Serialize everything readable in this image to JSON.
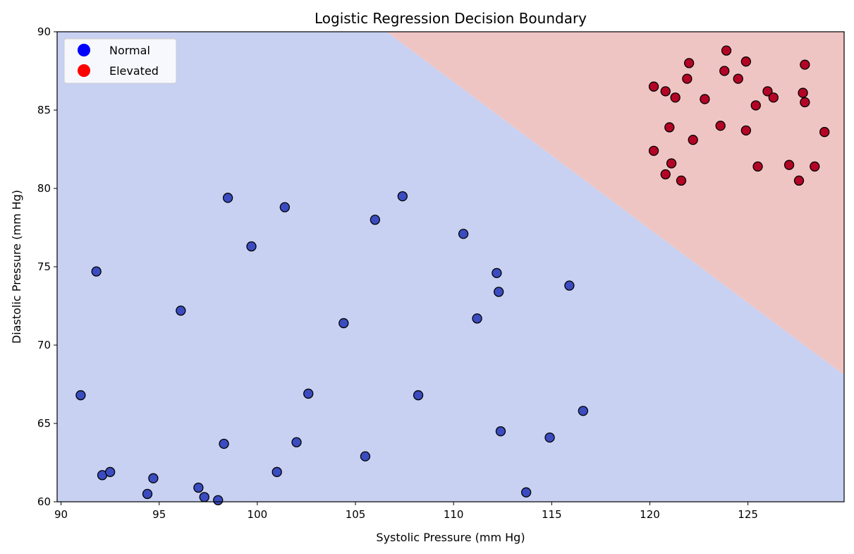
{
  "chart_data": {
    "type": "scatter",
    "title": "Logistic Regression Decision Boundary",
    "xlabel": "Systolic Pressure (mm Hg)",
    "ylabel": "Diastolic Pressure (mm Hg)",
    "xlim": [
      89.8,
      129.9
    ],
    "ylim": [
      60,
      90
    ],
    "xticks": [
      90,
      95,
      100,
      105,
      110,
      115,
      120,
      125
    ],
    "yticks": [
      60,
      65,
      70,
      75,
      80,
      85,
      90
    ],
    "grid": false,
    "legend_position": "top-left",
    "colors": {
      "region_normal": "#c8d1f2",
      "region_elevated": "#efc5c4",
      "normal_point": "#3b4cc0",
      "elevated_point": "#b40426",
      "legend_normal": "#0000ff",
      "legend_elevated": "#ff0000"
    },
    "decision_boundary": [
      {
        "x": 106.6,
        "y": 90
      },
      {
        "x": 129.9,
        "y": 68.1
      }
    ],
    "series": [
      {
        "name": "Normal",
        "points": [
          [
            91.0,
            66.8
          ],
          [
            91.8,
            74.7
          ],
          [
            92.1,
            61.7
          ],
          [
            92.5,
            61.9
          ],
          [
            94.4,
            60.5
          ],
          [
            94.7,
            61.5
          ],
          [
            96.1,
            72.2
          ],
          [
            97.0,
            60.9
          ],
          [
            97.3,
            60.3
          ],
          [
            98.0,
            60.1
          ],
          [
            98.3,
            63.7
          ],
          [
            98.5,
            79.4
          ],
          [
            99.7,
            76.3
          ],
          [
            101.0,
            61.9
          ],
          [
            101.4,
            78.8
          ],
          [
            102.0,
            63.8
          ],
          [
            102.6,
            66.9
          ],
          [
            104.4,
            71.4
          ],
          [
            105.5,
            62.9
          ],
          [
            106.0,
            78.0
          ],
          [
            107.4,
            79.5
          ],
          [
            108.2,
            66.8
          ],
          [
            110.5,
            77.1
          ],
          [
            111.2,
            71.7
          ],
          [
            112.2,
            74.6
          ],
          [
            112.3,
            73.4
          ],
          [
            112.4,
            64.5
          ],
          [
            113.7,
            60.6
          ],
          [
            114.9,
            64.1
          ],
          [
            115.9,
            73.8
          ],
          [
            116.6,
            65.8
          ]
        ]
      },
      {
        "name": "Elevated",
        "points": [
          [
            120.2,
            86.5
          ],
          [
            120.2,
            82.4
          ],
          [
            120.8,
            86.2
          ],
          [
            120.8,
            80.9
          ],
          [
            121.0,
            83.9
          ],
          [
            121.1,
            81.6
          ],
          [
            121.3,
            85.8
          ],
          [
            121.6,
            80.5
          ],
          [
            121.9,
            87.0
          ],
          [
            122.0,
            88.0
          ],
          [
            122.2,
            83.1
          ],
          [
            122.8,
            85.7
          ],
          [
            123.6,
            84.0
          ],
          [
            123.8,
            87.5
          ],
          [
            123.9,
            88.8
          ],
          [
            124.5,
            87.0
          ],
          [
            124.9,
            88.1
          ],
          [
            124.9,
            83.7
          ],
          [
            125.4,
            85.3
          ],
          [
            125.5,
            81.4
          ],
          [
            126.0,
            86.2
          ],
          [
            126.3,
            85.8
          ],
          [
            127.1,
            81.5
          ],
          [
            127.6,
            80.5
          ],
          [
            127.8,
            86.1
          ],
          [
            127.9,
            85.5
          ],
          [
            127.9,
            87.9
          ],
          [
            128.4,
            81.4
          ],
          [
            128.9,
            83.6
          ]
        ]
      }
    ]
  }
}
